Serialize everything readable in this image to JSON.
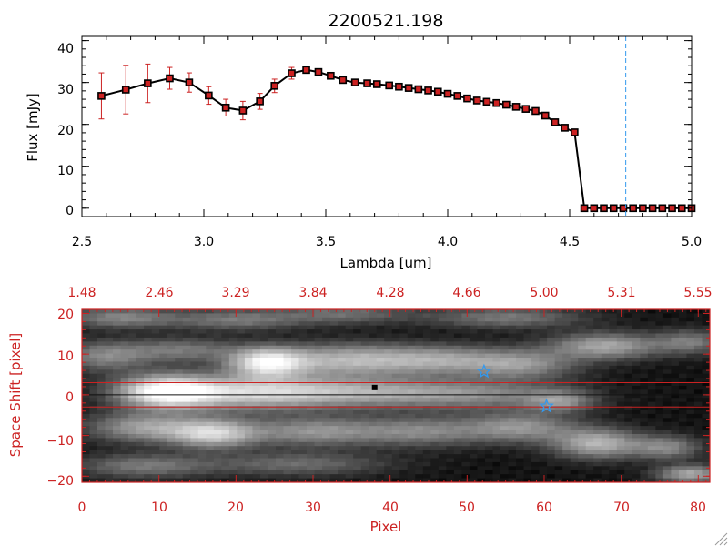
{
  "chart_data": [
    {
      "type": "line",
      "title": "2200521.198",
      "xlabel": "Lambda [um]",
      "ylabel": "Flux [mJy]",
      "xlim": [
        2.5,
        5.0
      ],
      "ylim": [
        -2,
        41
      ],
      "xticks": [
        2.5,
        3.0,
        3.5,
        4.0,
        4.5,
        5.0
      ],
      "xtick_labels": [
        "2.5",
        "3.0",
        "3.5",
        "4.0",
        "4.5",
        "5.0"
      ],
      "yticks": [
        0,
        10,
        20,
        30,
        40
      ],
      "ytick_labels": [
        "0",
        "10",
        "20",
        "30",
        "40"
      ],
      "series": [
        {
          "name": "flux",
          "color": "#000000",
          "marker_color": "#cc2222",
          "x": [
            2.58,
            2.68,
            2.77,
            2.86,
            2.94,
            3.02,
            3.09,
            3.16,
            3.23,
            3.29,
            3.36,
            3.42,
            3.47,
            3.52,
            3.57,
            3.62,
            3.67,
            3.71,
            3.76,
            3.8,
            3.84,
            3.88,
            3.92,
            3.96,
            4.0,
            4.04,
            4.08,
            4.12,
            4.16,
            4.2,
            4.24,
            4.28,
            4.32,
            4.36,
            4.4,
            4.44,
            4.48,
            4.52,
            4.56,
            4.6,
            4.64,
            4.68,
            4.72,
            4.76,
            4.8,
            4.84,
            4.88,
            4.92,
            4.96,
            5.0
          ],
          "y": [
            26.8,
            28.3,
            29.8,
            31.0,
            30.0,
            26.9,
            24.0,
            23.3,
            25.5,
            29.2,
            32.2,
            33.0,
            32.5,
            31.6,
            30.6,
            30.0,
            29.8,
            29.6,
            29.3,
            29.0,
            28.7,
            28.4,
            28.1,
            27.8,
            27.3,
            26.8,
            26.2,
            25.7,
            25.4,
            25.1,
            24.7,
            24.2,
            23.7,
            23.2,
            22.1,
            20.5,
            19.2,
            18.1,
            0,
            0,
            0,
            0,
            0,
            0,
            0,
            0,
            0,
            0,
            0,
            0
          ],
          "err": [
            5.5,
            5.8,
            4.6,
            2.6,
            2.3,
            2.1,
            2.0,
            2.2,
            1.9,
            1.6,
            1.4,
            0.8,
            0.5,
            0.4,
            0.4,
            0.3,
            0.3,
            0.3,
            0.3,
            0.3,
            0.3,
            0.3,
            0.3,
            0.3,
            0.3,
            0.3,
            0.3,
            0.3,
            0.3,
            0.3,
            0.3,
            0.3,
            0.3,
            0.3,
            0.3,
            0.3,
            0.3,
            0.3,
            0.3,
            0.3,
            0.3,
            0.3,
            0.3,
            0.3,
            0.3,
            0.3,
            0.3,
            0.3,
            0.3,
            0.3
          ]
        }
      ],
      "vline": {
        "x": 4.73,
        "color": "#3399ee"
      },
      "grid": false
    },
    {
      "type": "heatmap",
      "xlabel": "Pixel",
      "ylabel": "Space Shift [pixel]",
      "xlim": [
        0,
        81.5
      ],
      "ylim": [
        -21.5,
        21
      ],
      "xticks": [
        0,
        10,
        20,
        30,
        40,
        50,
        60,
        70,
        80
      ],
      "xtick_labels": [
        "0",
        "10",
        "20",
        "30",
        "40",
        "50",
        "60",
        "70",
        "80"
      ],
      "yticks": [
        -20,
        -10,
        0,
        10,
        20
      ],
      "ytick_labels": [
        "−20",
        "−10",
        "0",
        "10",
        "20"
      ],
      "top_axis_ticks": [
        0,
        10,
        20,
        30,
        40,
        50,
        60,
        70,
        80
      ],
      "top_axis_labels": [
        "1.48",
        "2.46",
        "3.29",
        "3.84",
        "4.28",
        "4.66",
        "5.00",
        "5.31",
        "5.55"
      ],
      "extraction_band": [
        -3,
        3
      ],
      "band_color": "#cc2222",
      "center_line": 0,
      "trace_point": {
        "x": 38.0,
        "y": 1.8
      },
      "star_markers": [
        {
          "x": 52.2,
          "y": 5.7
        },
        {
          "x": 60.3,
          "y": -2.8
        }
      ],
      "star_color": "#3399ee",
      "blobs": [
        {
          "x": 11,
          "y": 0.8,
          "amp": 1.0,
          "sx": 4.5,
          "sy": 2.8
        },
        {
          "x": 22,
          "y": 0.6,
          "amp": 0.6,
          "sx": 7,
          "sy": 3
        },
        {
          "x": 36,
          "y": 0.6,
          "amp": 0.5,
          "sx": 9,
          "sy": 2.6
        },
        {
          "x": 52,
          "y": 0.0,
          "amp": 0.35,
          "sx": 8,
          "sy": 2.5
        },
        {
          "x": 24,
          "y": 8.0,
          "amp": 0.85,
          "sx": 3.5,
          "sy": 2.5
        },
        {
          "x": 34,
          "y": 8.5,
          "amp": 0.55,
          "sx": 6,
          "sy": 2.8
        },
        {
          "x": 46,
          "y": 8.5,
          "amp": 0.5,
          "sx": 6,
          "sy": 2.5
        },
        {
          "x": 57,
          "y": 7.5,
          "amp": 0.45,
          "sx": 5,
          "sy": 2.5
        },
        {
          "x": 68,
          "y": 12.0,
          "amp": 0.55,
          "sx": 5,
          "sy": 2.2
        },
        {
          "x": 79,
          "y": 13.0,
          "amp": 0.35,
          "sx": 3,
          "sy": 2
        },
        {
          "x": 3,
          "y": 9.5,
          "amp": 0.4,
          "sx": 4,
          "sy": 2.5
        },
        {
          "x": 13,
          "y": 11.0,
          "amp": 0.35,
          "sx": 5,
          "sy": 2
        },
        {
          "x": 8,
          "y": -8.0,
          "amp": 0.5,
          "sx": 5,
          "sy": 2.5
        },
        {
          "x": 17,
          "y": -9.5,
          "amp": 0.7,
          "sx": 4,
          "sy": 2.5
        },
        {
          "x": 30,
          "y": -9.0,
          "amp": 0.45,
          "sx": 6,
          "sy": 2.5
        },
        {
          "x": 44,
          "y": -9.0,
          "amp": 0.4,
          "sx": 6,
          "sy": 2.5
        },
        {
          "x": 57,
          "y": -8.0,
          "amp": 0.45,
          "sx": 5,
          "sy": 2.5
        },
        {
          "x": 67,
          "y": -12.0,
          "amp": 0.6,
          "sx": 4,
          "sy": 2.5
        },
        {
          "x": 76,
          "y": -13.0,
          "amp": 0.4,
          "sx": 3,
          "sy": 2
        },
        {
          "x": 5,
          "y": 19.0,
          "amp": 0.4,
          "sx": 5,
          "sy": 1.8
        },
        {
          "x": 20,
          "y": 18.5,
          "amp": 0.35,
          "sx": 6,
          "sy": 1.8
        },
        {
          "x": 34,
          "y": 20.0,
          "amp": 0.3,
          "sx": 6,
          "sy": 1.8
        },
        {
          "x": 55,
          "y": 19.0,
          "amp": 0.35,
          "sx": 7,
          "sy": 1.8
        },
        {
          "x": 8,
          "y": -17.5,
          "amp": 0.35,
          "sx": 6,
          "sy": 2
        },
        {
          "x": 28,
          "y": -17.0,
          "amp": 0.3,
          "sx": 8,
          "sy": 2
        },
        {
          "x": 79,
          "y": -19.5,
          "amp": 0.55,
          "sx": 3,
          "sy": 1.5
        },
        {
          "x": 62,
          "y": -1.5,
          "amp": 0.4,
          "sx": 3,
          "sy": 1.8
        }
      ]
    }
  ]
}
